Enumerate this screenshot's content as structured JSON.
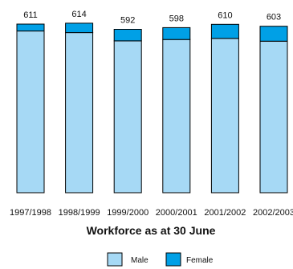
{
  "chart_data": {
    "type": "bar",
    "stacked": true,
    "title": "Workforce as at 30 June",
    "categories": [
      "1997/1998",
      "1998/1999",
      "1999/2000",
      "2000/2001",
      "2001/2002",
      "2002/2003"
    ],
    "totals": [
      611,
      614,
      592,
      598,
      610,
      603
    ],
    "series": [
      {
        "name": "Male",
        "color": "#a6d9f5",
        "values": [
          586,
          580,
          550,
          555,
          559,
          549
        ]
      },
      {
        "name": "Female",
        "color": "#00a0e6",
        "values": [
          25,
          34,
          42,
          43,
          51,
          54
        ]
      }
    ],
    "ylim": [
      0,
      640
    ],
    "grid": false,
    "legend": "bottom-center"
  }
}
